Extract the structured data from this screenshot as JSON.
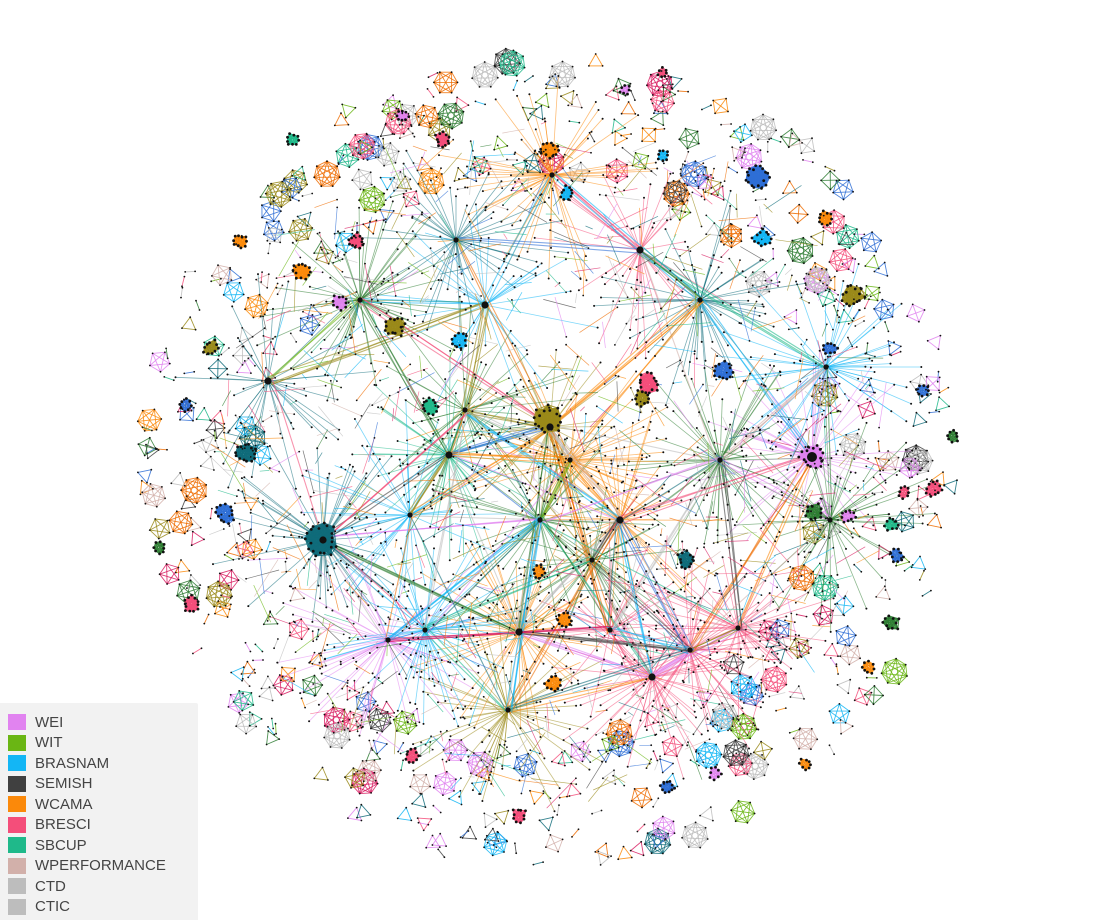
{
  "graph": {
    "node_color": "#111111",
    "nested_color": "#7a7a7a"
  },
  "legend": {
    "items": [
      {
        "label": "WEI",
        "color": "#e183f0",
        "slug": "wei"
      },
      {
        "label": "WIT",
        "color": "#6ab614",
        "slug": "wit"
      },
      {
        "label": "BRASNAM",
        "color": "#13b6f5",
        "slug": "brasnam"
      },
      {
        "label": "SEMISH",
        "color": "#404040",
        "slug": "semish"
      },
      {
        "label": "WCAMA",
        "color": "#fb890a",
        "slug": "wcama"
      },
      {
        "label": "BRESCI",
        "color": "#f44e7a",
        "slug": "bresci"
      },
      {
        "label": "SBCUP",
        "color": "#1fb98a",
        "slug": "sbcup"
      },
      {
        "label": "WPERFORMANCE",
        "color": "#d2b0aa",
        "slug": "wperformance"
      },
      {
        "label": "CTD",
        "color": "#bdbdbd",
        "slug": "ctd"
      },
      {
        "label": "CTIC",
        "color": "#bdbdbd",
        "slug": "ctic"
      }
    ]
  }
}
